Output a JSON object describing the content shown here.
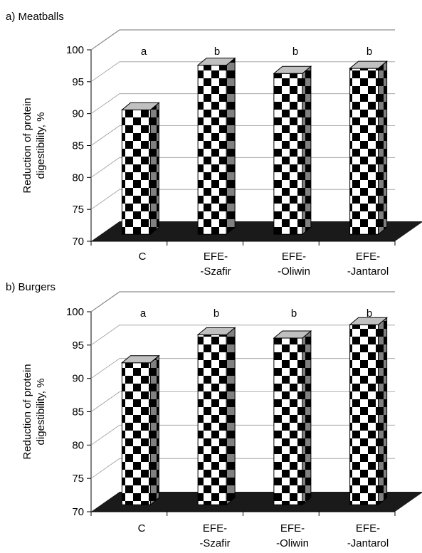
{
  "chart_data": [
    {
      "type": "bar",
      "title": "a) Meatballs",
      "ylabel": "Reduction of protein digestibility, %",
      "ylim": [
        70,
        100
      ],
      "yticks": [
        70,
        75,
        80,
        85,
        90,
        95,
        100
      ],
      "categories": [
        [
          "C"
        ],
        [
          "EFE-",
          "-Szafir"
        ],
        [
          "EFE-",
          "-Oliwin"
        ],
        [
          "EFE-",
          "-Jantarol"
        ]
      ],
      "values": [
        89.5,
        96.5,
        95.2,
        96.0
      ],
      "significance_letters": [
        "a",
        "b",
        "b",
        "b"
      ],
      "grid": true,
      "style": "3d-checkered"
    },
    {
      "type": "bar",
      "title": "b) Burgers",
      "ylabel": "Reduction of protein digestibility, %",
      "ylim": [
        70,
        100
      ],
      "yticks": [
        70,
        75,
        80,
        85,
        90,
        95,
        100
      ],
      "categories": [
        [
          "C"
        ],
        [
          "EFE-",
          "-Szafir"
        ],
        [
          "EFE-",
          "-Oliwin"
        ],
        [
          "EFE-",
          "-Jantarol"
        ]
      ],
      "values": [
        91.3,
        95.5,
        95.0,
        97.0
      ],
      "significance_letters": [
        "a",
        "b",
        "b",
        "b"
      ],
      "grid": true,
      "style": "3d-checkered"
    }
  ],
  "colors": {
    "floor": "#1a1a1a",
    "checker_dark": "#000000",
    "checker_light": "#ffffff",
    "bar_side": "#808080",
    "bar_top": "#c0c0c0",
    "grid": "#000000"
  }
}
